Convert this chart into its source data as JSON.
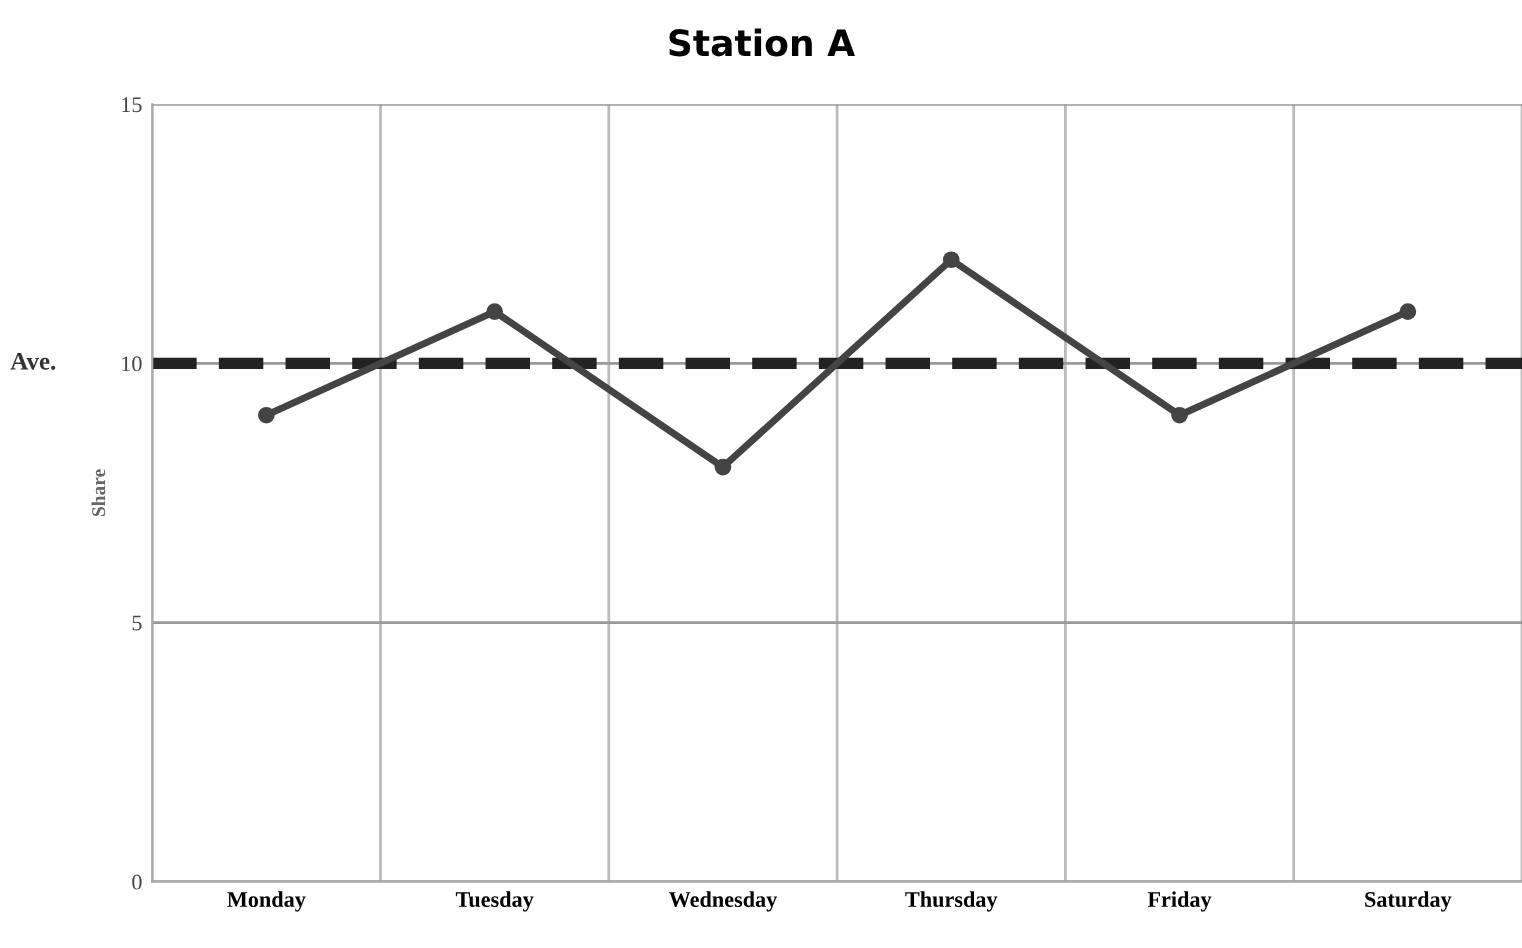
{
  "chart_data": {
    "type": "line",
    "title": "Station A",
    "ylabel": "Share",
    "categories": [
      "Monday",
      "Tuesday",
      "Wednesday",
      "Thursday",
      "Friday",
      "Saturday"
    ],
    "series": [
      {
        "color": "#444444",
        "values": [
          9,
          11,
          8,
          12,
          9,
          11
        ]
      }
    ],
    "ylim": [
      0,
      15
    ],
    "yticks": [
      0,
      5,
      10,
      15
    ],
    "grid": true,
    "marker": "circle",
    "line_style": "solid",
    "ref_lines": [
      {
        "axis": "y",
        "value": 10,
        "label": "Ave.",
        "color": "#222222",
        "line_style": "dashed"
      }
    ]
  }
}
